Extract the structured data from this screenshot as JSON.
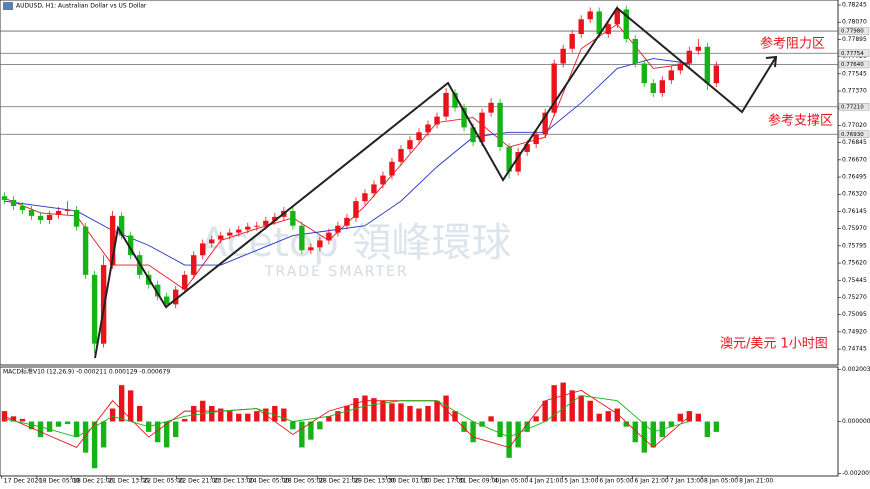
{
  "chart_data": {
    "type": "candlestick",
    "title": "AUDUSD, H1: Australian Dollar vs US Dollar",
    "annotations": [
      "参考阻力区",
      "参考支撑区",
      "澳元/美元  1小时图"
    ],
    "watermark": [
      "Acetop 領峰環球",
      "TRADE SMARTER"
    ],
    "up_color": "#e8141c",
    "down_color": "#16b316",
    "xlim": [
      -0.5,
      92.5
    ],
    "ylim": [
      0.74583,
      0.78296
    ],
    "open": [
      0.763,
      0.76262,
      0.762,
      0.7616,
      0.761,
      0.76058,
      0.7611,
      0.7615,
      0.7616,
      0.7599,
      0.755,
      0.748,
      0.756,
      0.761,
      0.759,
      0.757,
      0.755,
      0.754,
      0.7528,
      0.752,
      0.7535,
      0.755,
      0.757,
      0.7582,
      0.7586,
      0.759,
      0.7593,
      0.7596,
      0.7599,
      0.76,
      0.7605,
      0.7609,
      0.7615,
      0.76,
      0.7575,
      0.7578,
      0.7585,
      0.7593,
      0.76,
      0.7608,
      0.7625,
      0.7633,
      0.7642,
      0.7651,
      0.7665,
      0.7678,
      0.7687,
      0.7695,
      0.7703,
      0.7711,
      0.7735,
      0.772,
      0.77,
      0.7685,
      0.7715,
      0.7725,
      0.768,
      0.7655,
      0.7675,
      0.7683,
      0.7693,
      0.7715,
      0.7765,
      0.778,
      0.7795,
      0.781,
      0.7818,
      0.7795,
      0.7805,
      0.782,
      0.779,
      0.7765,
      0.7745,
      0.7735,
      0.7748,
      0.7758,
      0.7765,
      0.7778,
      0.7782,
      0.7745
    ],
    "high": [
      0.7634,
      0.76302,
      0.7624,
      0.762,
      0.7614,
      0.7615,
      0.7619,
      0.7625,
      0.762,
      0.7603,
      0.7554,
      0.757,
      0.7615,
      0.7614,
      0.7594,
      0.7574,
      0.7554,
      0.7544,
      0.7532,
      0.7539,
      0.7554,
      0.7574,
      0.7586,
      0.759,
      0.7594,
      0.7597,
      0.76,
      0.7603,
      0.7604,
      0.7609,
      0.7613,
      0.7619,
      0.7619,
      0.7604,
      0.7582,
      0.7589,
      0.7597,
      0.7604,
      0.7612,
      0.7629,
      0.7637,
      0.7646,
      0.7655,
      0.7669,
      0.7682,
      0.7691,
      0.7699,
      0.7707,
      0.7715,
      0.774,
      0.7739,
      0.7724,
      0.7704,
      0.7719,
      0.773,
      0.7729,
      0.7684,
      0.7679,
      0.7687,
      0.7697,
      0.7719,
      0.7769,
      0.7784,
      0.7799,
      0.7814,
      0.7822,
      0.7822,
      0.7809,
      0.7824,
      0.7824,
      0.7794,
      0.7769,
      0.7749,
      0.7752,
      0.7762,
      0.7769,
      0.7782,
      0.779,
      0.7786,
      0.7767
    ],
    "low": [
      0.76222,
      0.7616,
      0.7612,
      0.7606,
      0.76018,
      0.76018,
      0.7607,
      0.7611,
      0.7595,
      0.7546,
      0.747,
      0.7476,
      0.7556,
      0.7586,
      0.7566,
      0.7546,
      0.7536,
      0.7524,
      0.7516,
      0.7516,
      0.7531,
      0.7546,
      0.7566,
      0.7578,
      0.7582,
      0.7586,
      0.7589,
      0.7592,
      0.7595,
      0.7596,
      0.7601,
      0.7605,
      0.7596,
      0.7571,
      0.7571,
      0.7574,
      0.7581,
      0.7589,
      0.7596,
      0.7604,
      0.7621,
      0.7629,
      0.7638,
      0.7647,
      0.7661,
      0.7674,
      0.7683,
      0.7691,
      0.7699,
      0.7707,
      0.7716,
      0.7696,
      0.7681,
      0.7681,
      0.7711,
      0.7676,
      0.7648,
      0.7651,
      0.7671,
      0.7679,
      0.7689,
      0.7711,
      0.7761,
      0.7776,
      0.7791,
      0.7806,
      0.7791,
      0.7791,
      0.7801,
      0.7786,
      0.7761,
      0.7741,
      0.7731,
      0.7731,
      0.7744,
      0.7754,
      0.7761,
      0.7774,
      0.7738,
      0.7741
    ],
    "close": [
      0.76262,
      0.762,
      0.7616,
      0.761,
      0.76058,
      0.7611,
      0.7615,
      0.7616,
      0.7599,
      0.755,
      0.748,
      0.756,
      0.761,
      0.759,
      0.757,
      0.755,
      0.754,
      0.7528,
      0.752,
      0.7535,
      0.755,
      0.757,
      0.7582,
      0.7586,
      0.759,
      0.7593,
      0.7596,
      0.7599,
      0.76,
      0.7605,
      0.7609,
      0.7615,
      0.76,
      0.7575,
      0.7578,
      0.7585,
      0.7593,
      0.76,
      0.7608,
      0.7625,
      0.7633,
      0.7642,
      0.7651,
      0.7665,
      0.7678,
      0.7687,
      0.7695,
      0.7703,
      0.7711,
      0.7735,
      0.772,
      0.77,
      0.7685,
      0.7715,
      0.7725,
      0.768,
      0.7655,
      0.7675,
      0.7683,
      0.7693,
      0.7715,
      0.7765,
      0.778,
      0.7795,
      0.781,
      0.7818,
      0.7795,
      0.7805,
      0.782,
      0.779,
      0.7765,
      0.7745,
      0.7735,
      0.7748,
      0.7758,
      0.7765,
      0.7778,
      0.7782,
      0.7745,
      0.7763
    ],
    "ma_x": [
      0,
      4,
      8,
      12,
      16,
      20,
      24,
      28,
      32,
      36,
      40,
      44,
      48,
      52,
      56,
      60,
      64,
      68,
      72,
      76
    ],
    "ma": [
      {
        "color": "#e8141c",
        "values": [
          0.7628,
          0.7613,
          0.761,
          0.756,
          0.756,
          0.7535,
          0.7585,
          0.7597,
          0.7608,
          0.7585,
          0.762,
          0.7662,
          0.7705,
          0.771,
          0.768,
          0.769,
          0.778,
          0.7805,
          0.776,
          0.7765
        ]
      },
      {
        "color": "#2233cc",
        "values": [
          0.7625,
          0.762,
          0.7615,
          0.7595,
          0.758,
          0.756,
          0.756,
          0.7575,
          0.759,
          0.7595,
          0.76,
          0.7625,
          0.766,
          0.769,
          0.7695,
          0.7695,
          0.7725,
          0.776,
          0.777,
          0.7765
        ]
      }
    ],
    "yticks": [
      0.78245,
      {
        "value": 0.7807,
        "label": "0.78070"
      },
      0.77895,
      {
        "value": 0.7772,
        "label": "0.77720"
      },
      0.77545,
      {
        "value": 0.7737,
        "label": "0.77370"
      },
      0.77195,
      {
        "value": 0.7702,
        "label": "0.77020"
      },
      0.76845,
      {
        "value": 0.7667,
        "label": "0.76670"
      },
      0.76495,
      {
        "value": 0.7632,
        "label": "0.76320"
      },
      0.76145,
      {
        "value": 0.7597,
        "label": "0.75970"
      },
      0.75795,
      {
        "value": 0.7562,
        "label": "0.75620"
      },
      0.75445,
      {
        "value": 0.7527,
        "label": "0.75270"
      },
      0.75095,
      {
        "value": 0.7492,
        "label": "0.74920"
      },
      0.74745
    ],
    "levels": [
      {
        "value": 0.7798,
        "label": "0.77980"
      },
      {
        "value": 0.77754,
        "label": "0.77754"
      },
      {
        "value": 0.7764,
        "label": "0.77640"
      },
      {
        "value": 0.7721,
        "label": "0.77210"
      },
      {
        "value": 0.7693,
        "label": "0.76930"
      }
    ],
    "xticks": [
      {
        "value": -0.3,
        "label": "17 Dec 2020"
      },
      {
        "value": 3.6,
        "label": "18 Dec 05:00"
      },
      {
        "value": 7.4,
        "label": "18 Dec 21:00"
      },
      {
        "value": 11.3,
        "label": "21 Dec 13:00"
      },
      {
        "value": 15.2,
        "label": "22 Dec 05:00"
      },
      {
        "value": 19.1,
        "label": "22 Dec 21:00"
      },
      {
        "value": 23,
        "label": "23 Dec 13:00"
      },
      {
        "value": 26.9,
        "label": "24 Dec 05:00"
      },
      {
        "value": 30.8,
        "label": "28 Dec 05:00"
      },
      {
        "value": 34.7,
        "label": "28 Dec 21:00"
      },
      {
        "value": 38.6,
        "label": "29 Dec 13:00"
      },
      {
        "value": 42.4,
        "label": "30 Dec 01:00"
      },
      {
        "value": 46.3,
        "label": "30 Dec 17:00"
      },
      {
        "value": 50.2,
        "label": "31 Dec 09:00"
      },
      {
        "value": 54.1,
        "label": "4 Jan 05:00"
      },
      {
        "value": 58,
        "label": "4 Jan 21:00"
      },
      {
        "value": 61.9,
        "label": "5 Jan 13:00"
      },
      {
        "value": 65.8,
        "label": "6 Jan 05:00"
      },
      {
        "value": 69.7,
        "label": "6 Jan 21:00"
      },
      {
        "value": 73.6,
        "label": "7 Jan 13:00"
      },
      {
        "value": 77.4,
        "label": "8 Jan 05:00"
      },
      {
        "value": 81.3,
        "label": "8 Jan 21:00"
      }
    ],
    "macd": {
      "label": "MACD标准V10 (12,26,9) -0.000211 0.000129 -0.000679",
      "ylim": [
        -0.0021,
        0.0021
      ],
      "yticks": [
        0.002003,
        {
          "value": 0,
          "label": "0.000000"
        },
        -0.002005
      ],
      "histogram": [
        0.0004,
        0.0002,
        0.0001,
        -0.0003,
        -0.0006,
        -0.0004,
        -0.0002,
        -0.0001,
        -0.0006,
        -0.0012,
        -0.0018,
        -0.001,
        0.0005,
        0.0014,
        0.0012,
        0.0006,
        -0.0004,
        -0.0008,
        -0.001,
        -0.0006,
        0.0001,
        0.0006,
        0.0008,
        0.0006,
        0.0005,
        0.0004,
        0.0003,
        0.0003,
        0.0004,
        0.0005,
        0.0006,
        0.0005,
        -0.0003,
        -0.001,
        -0.0007,
        -0.0003,
        0.0002,
        0.0004,
        0.0006,
        0.0009,
        0.001,
        0.0009,
        0.0008,
        0.0007,
        0.0007,
        0.0006,
        0.0005,
        0.0006,
        0.0008,
        0.001,
        0.0004,
        -0.0004,
        -0.0008,
        -0.0002,
        0.0002,
        -0.0006,
        -0.0014,
        -0.001,
        -0.0004,
        0.0002,
        0.0008,
        0.0014,
        0.0015,
        0.0012,
        0.001,
        0.0008,
        0.0003,
        0.0004,
        0.0005,
        -0.0002,
        -0.0008,
        -0.0012,
        -0.001,
        -0.0006,
        -0.0002,
        0.0003,
        0.0004,
        0.0003,
        -0.0006,
        -0.0004
      ],
      "lines": [
        {
          "color": "#e8141c",
          "values": [
            0.0002,
            -0.0004,
            -0.001,
            0.0008,
            -0.0006,
            0.0004,
            0.0004,
            0.0005,
            -0.0005,
            0.0004,
            0.0008,
            0.0008,
            0.0008,
            -0.0006,
            -0.001,
            0.0008,
            0.0012,
            0.0003,
            -0.001,
            0.0002
          ]
        },
        {
          "color": "#16b316",
          "values": [
            0.0001,
            -0.0002,
            -0.0006,
            0.0002,
            -0.0002,
            0.0002,
            0.0004,
            0.0005,
            0,
            0.0002,
            0.0006,
            0.0008,
            0.0008,
            0,
            -0.0006,
            0,
            0.001,
            0.0008,
            -0.0004,
            0
          ]
        }
      ]
    }
  }
}
